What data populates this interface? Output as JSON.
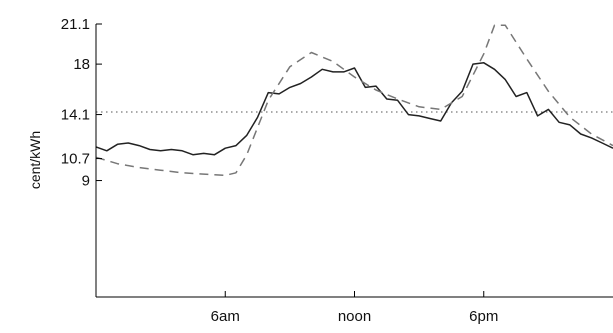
{
  "chart_data": {
    "type": "line",
    "title": "",
    "xlabel": "",
    "ylabel": "cent/kWh",
    "x_tick_labels": [
      "6am",
      "noon",
      "6pm"
    ],
    "x_tick_values": [
      6,
      12,
      18
    ],
    "x_range": [
      0,
      24
    ],
    "y_ticks": [
      9,
      10.7,
      14.1,
      18,
      21.1
    ],
    "y_tick_labels": [
      "9",
      "10.7",
      "14.1",
      "18",
      "21.1"
    ],
    "ylim": [
      0,
      21.1
    ],
    "grid": false,
    "legend": "none",
    "reference_line": {
      "y": 14.3,
      "style": "dotted"
    },
    "series": [
      {
        "style": "solid",
        "color": "#222222",
        "x": [
          0,
          0.5,
          1,
          1.5,
          2,
          2.5,
          3,
          3.5,
          4,
          4.5,
          5,
          5.5,
          6,
          6.5,
          7,
          7.5,
          8,
          8.5,
          9,
          9.5,
          10,
          10.5,
          11,
          11.5,
          12,
          12.5,
          13,
          13.5,
          14,
          14.5,
          15,
          15.5,
          16,
          16.5,
          17,
          17.5,
          18,
          18.5,
          19,
          19.5,
          20,
          20.5,
          21,
          21.5,
          22,
          22.5,
          23,
          23.5,
          24
        ],
        "values": [
          11.6,
          11.3,
          11.8,
          11.9,
          11.7,
          11.4,
          11.3,
          11.4,
          11.3,
          11.0,
          11.1,
          11.0,
          11.5,
          11.7,
          12.5,
          13.9,
          15.8,
          15.7,
          16.2,
          16.5,
          17.0,
          17.6,
          17.4,
          17.4,
          17.7,
          16.2,
          16.3,
          15.3,
          15.2,
          14.1,
          14.0,
          13.8,
          13.6,
          15.0,
          15.9,
          18.0,
          18.1,
          17.6,
          16.8,
          15.5,
          15.8,
          14.0,
          14.5,
          13.5,
          13.3,
          12.6,
          12.3,
          11.9,
          11.5
        ]
      },
      {
        "style": "dashed",
        "color": "#777777",
        "x": [
          0,
          1,
          2,
          3,
          4,
          5,
          6,
          6.5,
          7,
          8,
          9,
          10,
          11,
          12,
          13,
          14,
          15,
          16,
          17,
          18,
          18.5,
          19,
          20,
          21,
          22,
          23,
          24
        ],
        "values": [
          10.8,
          10.3,
          10.0,
          9.8,
          9.6,
          9.5,
          9.4,
          9.6,
          11.0,
          15.2,
          17.8,
          18.9,
          18.2,
          17.0,
          16.0,
          15.3,
          14.7,
          14.5,
          15.5,
          18.8,
          21.0,
          21.0,
          18.4,
          15.9,
          13.9,
          12.6,
          11.7
        ]
      }
    ]
  }
}
